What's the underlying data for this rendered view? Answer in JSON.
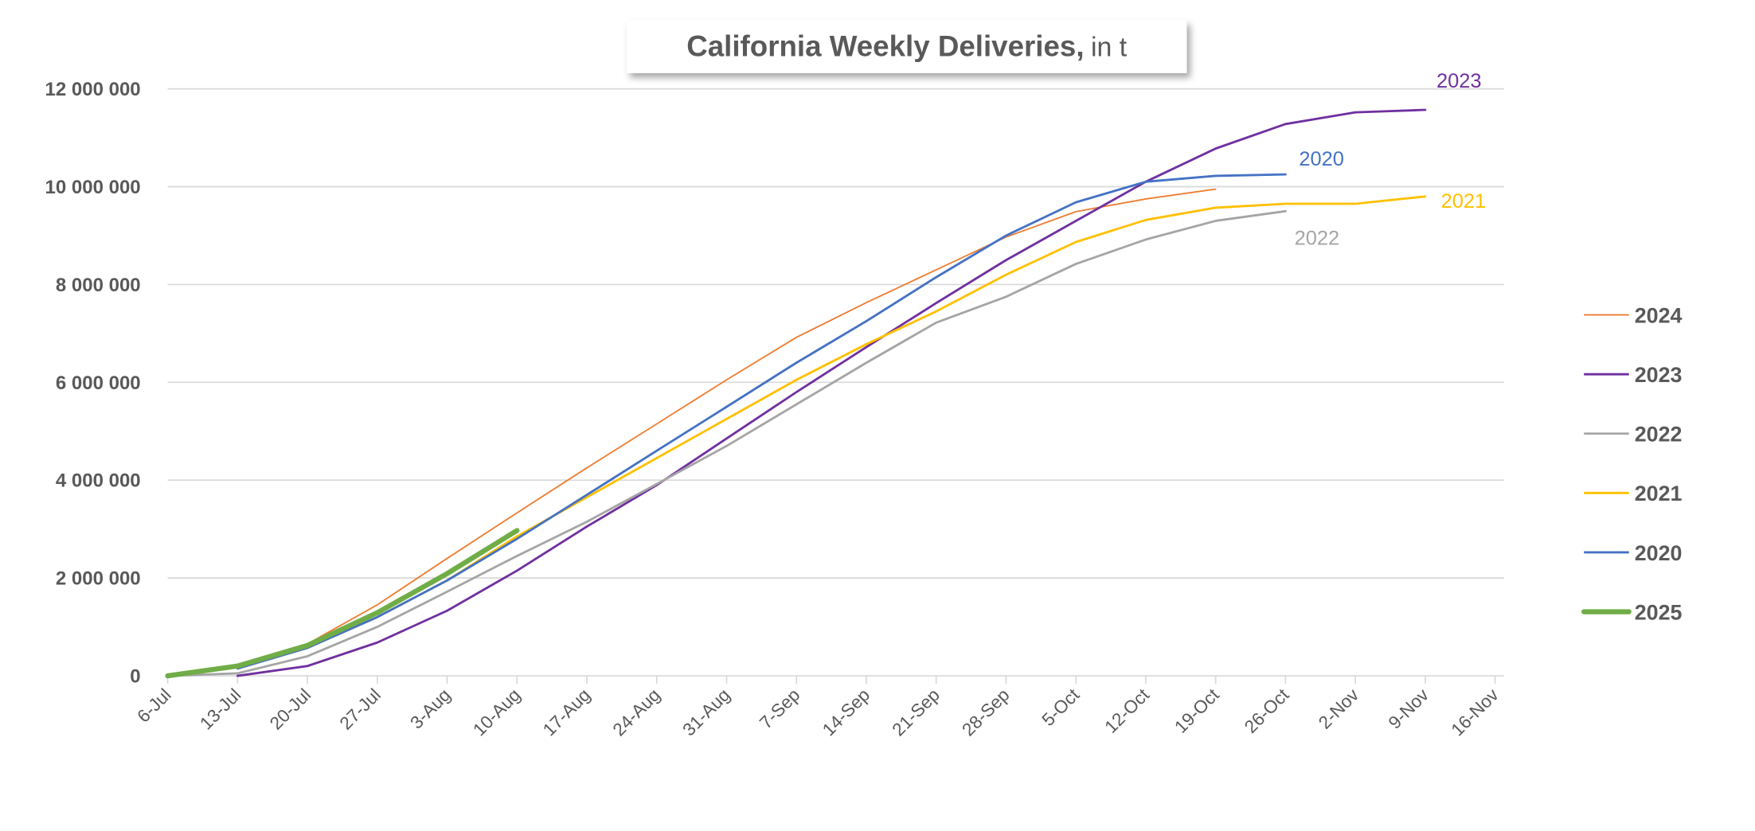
{
  "chart_data": {
    "type": "line",
    "title": "California Weekly Deliveries,",
    "title_unit": "in t",
    "xlabel": "",
    "ylabel": "",
    "ylim": [
      0,
      12000000
    ],
    "yticks": [
      0,
      2000000,
      4000000,
      6000000,
      8000000,
      10000000,
      12000000
    ],
    "ytick_labels": [
      "0",
      "2 000 000",
      "4 000 000",
      "6 000 000",
      "8 000 000",
      "10 000 000",
      "12 000 000"
    ],
    "grid": true,
    "legend_position": "right",
    "categories": [
      "6-Jul",
      "13-Jul",
      "20-Jul",
      "27-Jul",
      "3-Aug",
      "10-Aug",
      "17-Aug",
      "24-Aug",
      "31-Aug",
      "7-Sep",
      "14-Sep",
      "21-Sep",
      "28-Sep",
      "5-Oct",
      "12-Oct",
      "19-Oct",
      "26-Oct",
      "2-Nov",
      "9-Nov",
      "16-Nov"
    ],
    "series": [
      {
        "name": "2024",
        "color": "#ED7D31",
        "width": 1.3,
        "label": "",
        "values": [
          0,
          200000,
          650000,
          1450000,
          2400000,
          3330000,
          4250000,
          5150000,
          6050000,
          6920000,
          7630000,
          8300000,
          8970000,
          9490000,
          9750000,
          9950000,
          null,
          null,
          null,
          null
        ]
      },
      {
        "name": "2023",
        "color": "#7030A0",
        "width": 2,
        "label": "2023",
        "values": [
          null,
          0,
          200000,
          680000,
          1330000,
          2150000,
          3050000,
          3900000,
          4850000,
          5800000,
          6720000,
          7620000,
          8500000,
          9300000,
          10100000,
          10780000,
          11280000,
          11520000,
          11570000,
          null
        ]
      },
      {
        "name": "2022",
        "color": "#A5A5A5",
        "width": 2,
        "label": "2022",
        "values": [
          0,
          50000,
          400000,
          1000000,
          1720000,
          2450000,
          3150000,
          3920000,
          4700000,
          5550000,
          6400000,
          7220000,
          7750000,
          8420000,
          8920000,
          9300000,
          9500000,
          null,
          null,
          null
        ]
      },
      {
        "name": "2021",
        "color": "#FFC000",
        "width": 2,
        "label": "2021",
        "values": [
          null,
          150000,
          570000,
          1200000,
          1950000,
          2850000,
          3650000,
          4450000,
          5250000,
          6050000,
          6780000,
          7450000,
          8200000,
          8870000,
          9320000,
          9570000,
          9650000,
          9650000,
          9800000,
          null
        ]
      },
      {
        "name": "2020",
        "color": "#4472C4",
        "width": 2,
        "label": "2020",
        "values": [
          null,
          150000,
          570000,
          1200000,
          1950000,
          2800000,
          3700000,
          4600000,
          5500000,
          6400000,
          7250000,
          8150000,
          9000000,
          9680000,
          10100000,
          10220000,
          10250000,
          null,
          null,
          null
        ]
      },
      {
        "name": "2025",
        "color": "#70AD47",
        "width": 4.5,
        "label": "",
        "values": [
          0,
          200000,
          620000,
          1290000,
          2090000,
          2970000,
          null,
          null,
          null,
          null,
          null,
          null,
          null,
          null,
          null,
          null,
          null,
          null,
          null,
          null
        ]
      }
    ]
  }
}
